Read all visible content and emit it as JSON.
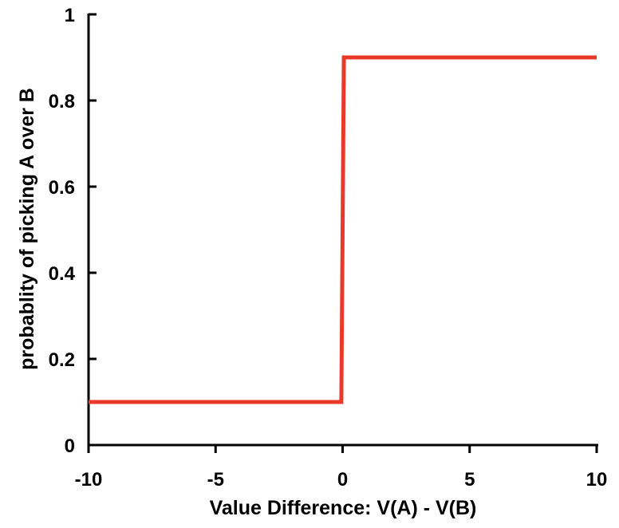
{
  "chart_data": {
    "type": "line",
    "xlabel": "Value Difference: V(A) - V(B)",
    "ylabel": "probablity of picking A over B",
    "xlim": [
      -10,
      10
    ],
    "ylim": [
      0,
      1
    ],
    "x_ticks": [
      {
        "value": -10,
        "label": "-10"
      },
      {
        "value": -5,
        "label": "-5"
      },
      {
        "value": 0,
        "label": "0"
      },
      {
        "value": 5,
        "label": "5"
      },
      {
        "value": 10,
        "label": "10"
      }
    ],
    "y_ticks": [
      {
        "value": 0,
        "label": "0"
      },
      {
        "value": 0.2,
        "label": "0.2"
      },
      {
        "value": 0.4,
        "label": "0.4"
      },
      {
        "value": 0.6,
        "label": "0.6"
      },
      {
        "value": 0.8,
        "label": "0.8"
      },
      {
        "value": 1,
        "label": "1"
      }
    ],
    "grid": false,
    "series": [
      {
        "color": "#e8392b",
        "x": [
          -10,
          -0.05,
          0.05,
          10
        ],
        "y": [
          0.1,
          0.1,
          0.9,
          0.9
        ]
      }
    ]
  }
}
